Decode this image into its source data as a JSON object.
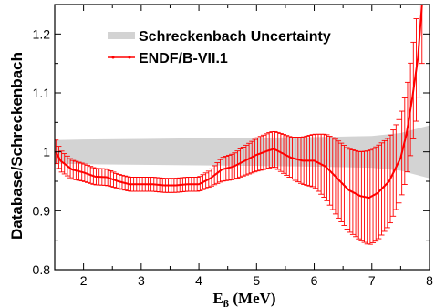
{
  "chart_data": {
    "type": "line",
    "xlabel_main": "E",
    "xlabel_sub": "β",
    "xlabel_unit": " (MeV)",
    "ylabel": "Database/Schreckenbach",
    "xlim": [
      1.5,
      8.0
    ],
    "ylim": [
      0.8,
      1.25
    ],
    "xticks": [
      2,
      3,
      4,
      5,
      6,
      7,
      8
    ],
    "yticks": [
      0.8,
      0.9,
      1.0,
      1.1,
      1.2
    ],
    "ytick_labels": [
      "0.8",
      "0.9",
      "1",
      "1.1",
      "1.2"
    ],
    "grid": false,
    "legend_position": "top-center",
    "band": {
      "name": "Schreckenbach Uncertainty",
      "color": "#d3d3d3",
      "x": [
        1.5,
        2.0,
        3.0,
        4.0,
        5.0,
        6.0,
        6.5,
        7.0,
        7.5,
        8.0
      ],
      "lower": [
        0.98,
        0.979,
        0.978,
        0.977,
        0.976,
        0.975,
        0.974,
        0.973,
        0.968,
        0.955
      ],
      "upper": [
        1.02,
        1.021,
        1.022,
        1.023,
        1.024,
        1.025,
        1.026,
        1.027,
        1.032,
        1.045
      ]
    },
    "series": [
      {
        "name": "ENDF/B-VII.1",
        "color": "#ff0000",
        "x": [
          1.52,
          1.6,
          1.8,
          2.0,
          2.2,
          2.4,
          2.6,
          2.8,
          3.0,
          3.2,
          3.4,
          3.6,
          3.8,
          4.0,
          4.2,
          4.4,
          4.6,
          4.8,
          5.0,
          5.2,
          5.3,
          5.4,
          5.6,
          5.8,
          6.0,
          6.2,
          6.4,
          6.6,
          6.8,
          6.95,
          7.1,
          7.3,
          7.5,
          7.6,
          7.7,
          7.8,
          7.87
        ],
        "y": [
          1.0,
          0.985,
          0.97,
          0.965,
          0.958,
          0.957,
          0.95,
          0.945,
          0.945,
          0.945,
          0.943,
          0.943,
          0.945,
          0.945,
          0.955,
          0.97,
          0.975,
          0.985,
          0.995,
          1.002,
          1.005,
          1.0,
          0.99,
          0.985,
          0.985,
          0.975,
          0.955,
          0.935,
          0.925,
          0.922,
          0.93,
          0.95,
          0.99,
          1.03,
          1.09,
          1.16,
          1.25
        ],
        "err": [
          0.02,
          0.018,
          0.016,
          0.015,
          0.014,
          0.014,
          0.012,
          0.012,
          0.012,
          0.012,
          0.012,
          0.012,
          0.012,
          0.012,
          0.014,
          0.02,
          0.022,
          0.025,
          0.028,
          0.03,
          0.03,
          0.032,
          0.035,
          0.04,
          0.045,
          0.055,
          0.065,
          0.07,
          0.075,
          0.08,
          0.08,
          0.075,
          0.07,
          0.075,
          0.08,
          0.09,
          0.1
        ]
      }
    ]
  }
}
